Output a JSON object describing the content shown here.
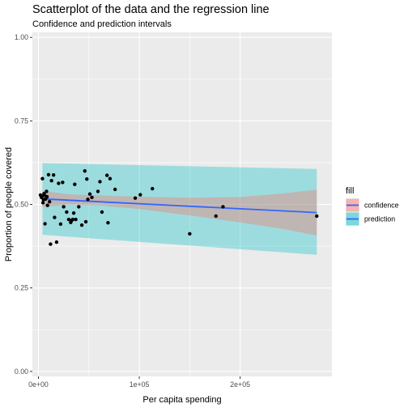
{
  "chart_data": {
    "type": "scatter",
    "title": "Scatterplot of the data and the regression line",
    "subtitle": "Confidence and prediction intervals",
    "xlabel": "Per capita spending",
    "ylabel": "Proportion of people covered",
    "xlim": [
      -6000,
      291000
    ],
    "ylim": [
      -0.015,
      1.015
    ],
    "x_ticks": [
      0,
      100000,
      200000
    ],
    "x_tick_labels": [
      "0e+00",
      "1e+05",
      "2e+05"
    ],
    "y_ticks": [
      0,
      0.25,
      0.5,
      0.75,
      1
    ],
    "y_tick_labels": [
      "0.00",
      "0.25",
      "0.50",
      "0.75",
      "1.00"
    ],
    "grid": true,
    "legend": {
      "title": "fill",
      "placement": "right",
      "entries": [
        {
          "label": "confidence",
          "fill": "#F8766D"
        },
        {
          "label": "prediction",
          "fill": "#00BFC4"
        }
      ]
    },
    "colors": {
      "panel": "#EBEBEB",
      "grid": "#FFFFFF",
      "points": "#000000",
      "regression_line": "#3366FF",
      "confidence_band": "#F8766D",
      "prediction_band": "#00BFC4"
    },
    "regression_line": {
      "x": [
        4000,
        276000
      ],
      "y": [
        0.5165,
        0.4755
      ]
    },
    "confidence_band": {
      "x": [
        4000,
        30000,
        60000,
        100000,
        150000,
        200000,
        240000,
        276000
      ],
      "lower": [
        0.492,
        0.5,
        0.497,
        0.486,
        0.467,
        0.446,
        0.428,
        0.407
      ],
      "upper": [
        0.541,
        0.53,
        0.527,
        0.523,
        0.52,
        0.522,
        0.532,
        0.544
      ]
    },
    "prediction_band": {
      "x": [
        4000,
        276000
      ],
      "lower": [
        0.409,
        0.349
      ],
      "upper": [
        0.624,
        0.606
      ]
    },
    "points": {
      "x": [
        2000,
        3000,
        3500,
        4000,
        4500,
        5000,
        5500,
        6000,
        6500,
        7000,
        8000,
        8500,
        9000,
        10000,
        11000,
        12000,
        13000,
        15000,
        16000,
        18000,
        20000,
        22000,
        24000,
        25000,
        28000,
        30000,
        32000,
        33000,
        34000,
        35000,
        36000,
        37000,
        40000,
        43000,
        46000,
        47000,
        48000,
        49000,
        51000,
        53000,
        59000,
        61000,
        63000,
        68000,
        69000,
        71000,
        76000,
        96000,
        101000,
        113000,
        150000,
        176000,
        183000,
        276000
      ],
      "y": [
        0.528,
        0.521,
        0.524,
        0.577,
        0.505,
        0.514,
        0.532,
        0.527,
        0.442,
        0.516,
        0.539,
        0.523,
        0.497,
        0.589,
        0.508,
        0.381,
        0.571,
        0.588,
        0.461,
        0.387,
        0.563,
        0.441,
        0.566,
        0.493,
        0.477,
        0.455,
        0.446,
        0.452,
        0.455,
        0.474,
        0.56,
        0.455,
        0.493,
        0.438,
        0.6,
        0.448,
        0.576,
        0.515,
        0.531,
        0.521,
        0.539,
        0.568,
        0.477,
        0.587,
        0.445,
        0.577,
        0.545,
        0.519,
        0.529,
        0.547,
        0.412,
        0.465,
        0.493,
        0.465
      ]
    }
  }
}
